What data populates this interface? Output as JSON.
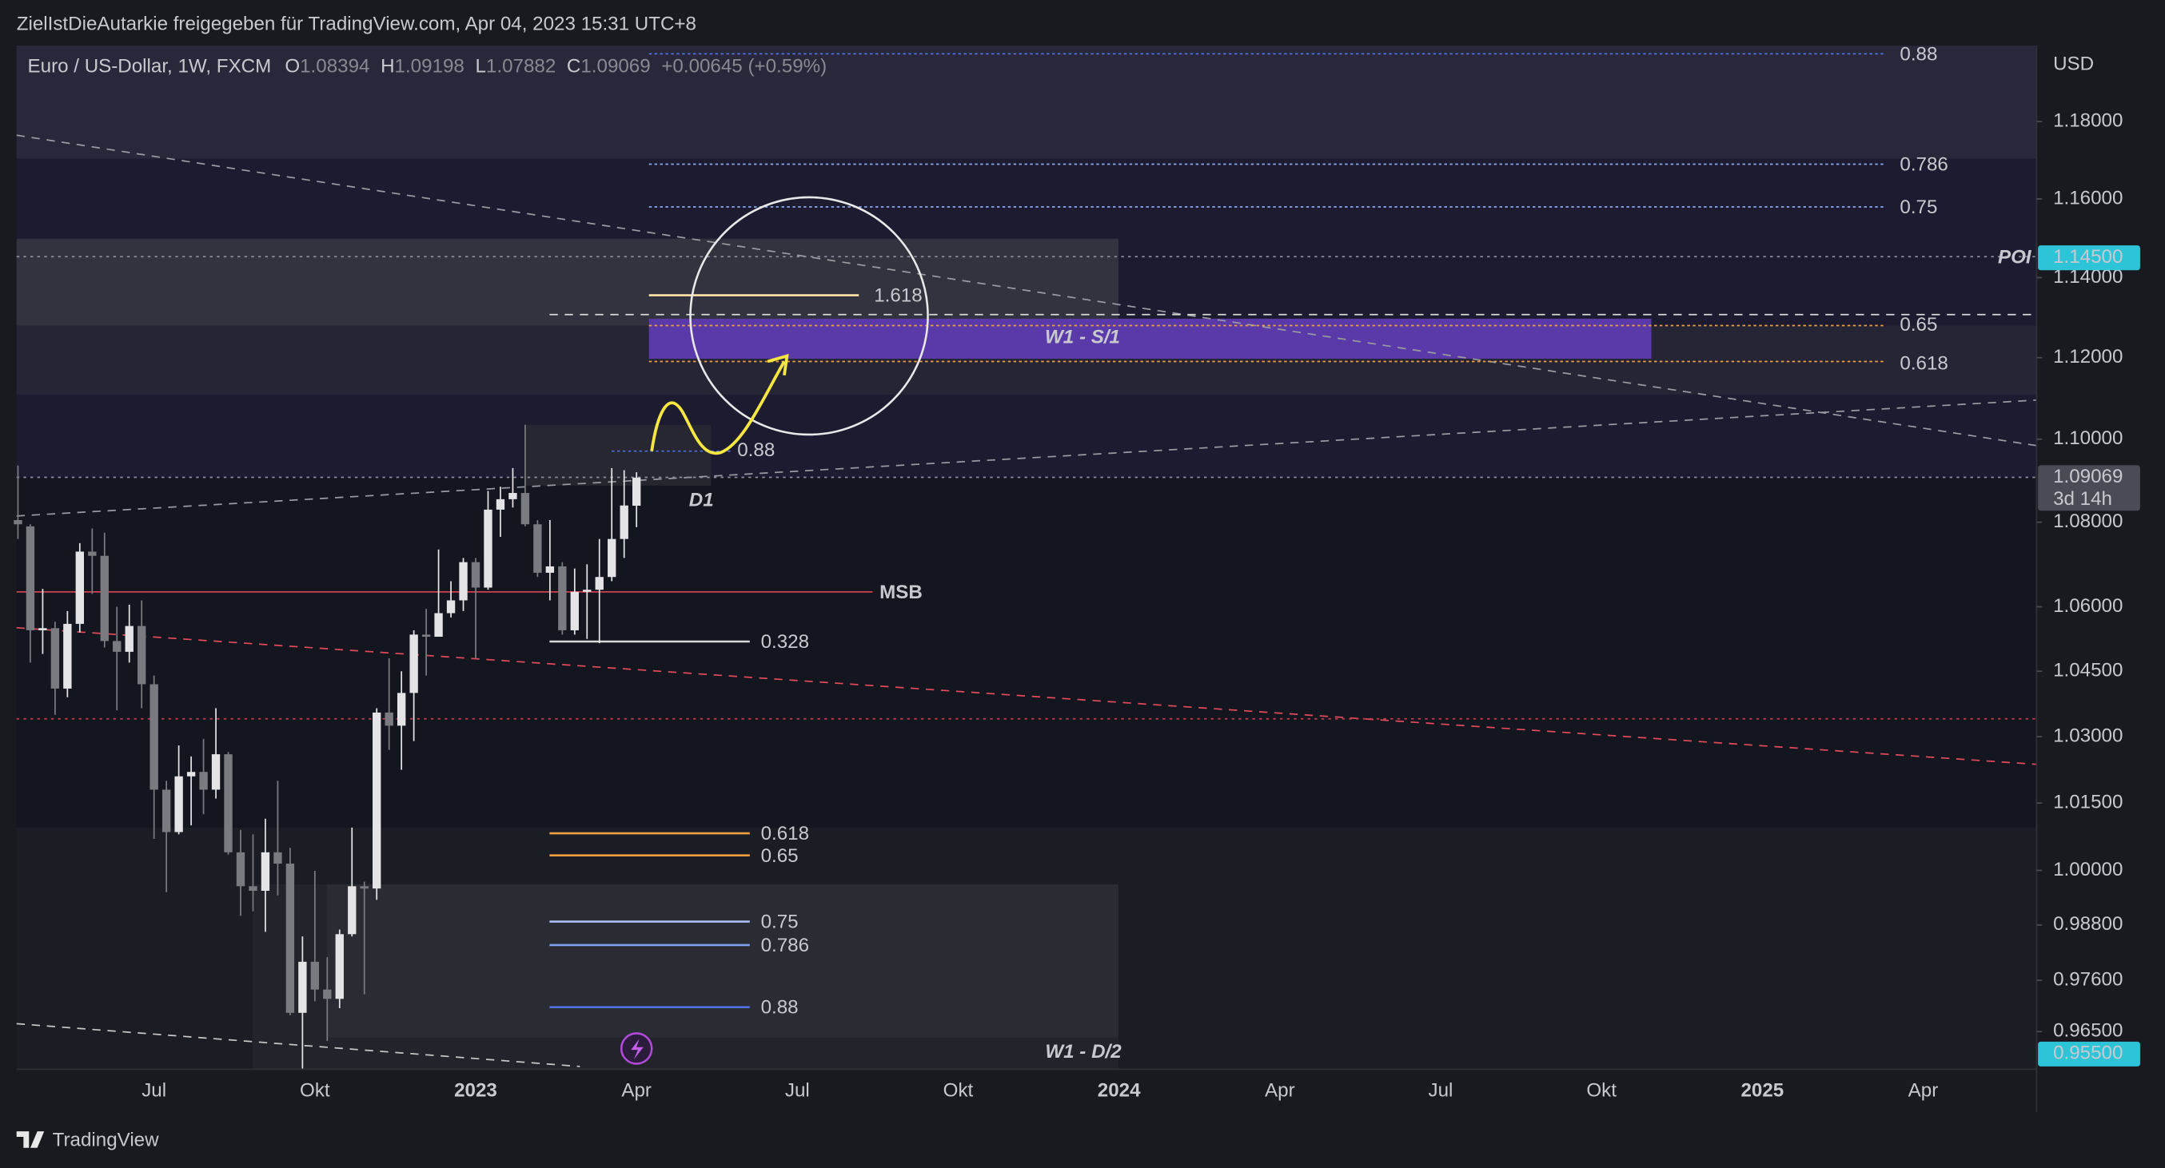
{
  "header": {
    "shared_by": "ZielIstDieAutarkie freigegeben für TradingView.com, Apr 04, 2023 15:31 UTC+8"
  },
  "chart_data": {
    "type": "candlestick",
    "title": "Euro / US-Dollar, 1W, FXCM",
    "ohlc_labels": [
      "O",
      "H",
      "L",
      "C"
    ],
    "change": "+0.00645 (+0.59%)",
    "currency": "USD",
    "up_color": "#e4e4e6",
    "down_color": "#7a7b80",
    "log_scale": true,
    "ylim": [
      0.957,
      1.2
    ],
    "yticks": [
      {
        "value": 1.18,
        "label": "1.18000"
      },
      {
        "value": 1.16,
        "label": "1.16000"
      },
      {
        "value": 1.14,
        "label": "1.14000"
      },
      {
        "value": 1.12,
        "label": "1.12000"
      },
      {
        "value": 1.1,
        "label": "1.10000"
      },
      {
        "value": 1.08,
        "label": "1.08000"
      },
      {
        "value": 1.06,
        "label": "1.06000"
      },
      {
        "value": 1.045,
        "label": "1.04500"
      },
      {
        "value": 1.03,
        "label": "1.03000"
      },
      {
        "value": 1.015,
        "label": "1.01500"
      },
      {
        "value": 1.0,
        "label": "1.00000"
      },
      {
        "value": 0.988,
        "label": "0.98800"
      },
      {
        "value": 0.976,
        "label": "0.97600"
      },
      {
        "value": 0.965,
        "label": "0.96500"
      }
    ],
    "xticks": [
      "Jul",
      "Okt",
      "2023",
      "Apr",
      "Jul",
      "Okt",
      "2024",
      "Apr",
      "Jul",
      "Okt",
      "2025",
      "Apr"
    ],
    "candles": [
      {
        "open": 1.0805,
        "high": 1.0936,
        "low": 1.076,
        "close": 1.0795
      },
      {
        "open": 1.079,
        "high": 1.0795,
        "low": 1.047,
        "close": 1.0545
      },
      {
        "open": 1.0545,
        "high": 1.0642,
        "low": 1.049,
        "close": 1.055
      },
      {
        "open": 1.055,
        "high": 1.0565,
        "low": 1.035,
        "close": 1.041
      },
      {
        "open": 1.041,
        "high": 1.059,
        "low": 1.039,
        "close": 1.056
      },
      {
        "open": 1.056,
        "high": 1.075,
        "low": 1.054,
        "close": 1.073
      },
      {
        "open": 1.073,
        "high": 1.0785,
        "low": 1.063,
        "close": 1.072
      },
      {
        "open": 1.072,
        "high": 1.0775,
        "low": 1.0505,
        "close": 1.052
      },
      {
        "open": 1.052,
        "high": 1.06,
        "low": 1.036,
        "close": 1.0495
      },
      {
        "open": 1.0495,
        "high": 1.0605,
        "low": 1.047,
        "close": 1.0555
      },
      {
        "open": 1.0555,
        "high": 1.0615,
        "low": 1.0365,
        "close": 1.042
      },
      {
        "open": 1.042,
        "high": 1.044,
        "low": 1.007,
        "close": 1.018
      },
      {
        "open": 1.018,
        "high": 1.02,
        "low": 0.9952,
        "close": 1.0085
      },
      {
        "open": 1.0085,
        "high": 1.028,
        "low": 1.008,
        "close": 1.021
      },
      {
        "open": 1.021,
        "high": 1.0255,
        "low": 1.01,
        "close": 1.022
      },
      {
        "open": 1.022,
        "high": 1.0295,
        "low": 1.0125,
        "close": 1.018
      },
      {
        "open": 1.018,
        "high": 1.0365,
        "low": 1.016,
        "close": 1.026
      },
      {
        "open": 1.026,
        "high": 1.0265,
        "low": 1.0035,
        "close": 1.004
      },
      {
        "open": 1.004,
        "high": 1.009,
        "low": 0.99,
        "close": 0.9965
      },
      {
        "open": 0.9965,
        "high": 1.008,
        "low": 0.991,
        "close": 0.9955
      },
      {
        "open": 0.9955,
        "high": 1.0115,
        "low": 0.9865,
        "close": 1.004
      },
      {
        "open": 1.004,
        "high": 1.02,
        "low": 0.9945,
        "close": 1.0015
      },
      {
        "open": 1.0015,
        "high": 1.005,
        "low": 0.9685,
        "close": 0.969
      },
      {
        "open": 0.969,
        "high": 0.9855,
        "low": 0.9535,
        "close": 0.98
      },
      {
        "open": 0.98,
        "high": 0.9999,
        "low": 0.9715,
        "close": 0.974
      },
      {
        "open": 0.974,
        "high": 0.981,
        "low": 0.963,
        "close": 0.972
      },
      {
        "open": 0.972,
        "high": 0.987,
        "low": 0.97,
        "close": 0.986
      },
      {
        "open": 0.986,
        "high": 1.0095,
        "low": 0.9855,
        "close": 0.9965
      },
      {
        "open": 0.9965,
        "high": 0.9975,
        "low": 0.973,
        "close": 0.996
      },
      {
        "open": 0.996,
        "high": 1.0365,
        "low": 0.9935,
        "close": 1.0355
      },
      {
        "open": 1.0355,
        "high": 1.048,
        "low": 1.027,
        "close": 1.0325
      },
      {
        "open": 1.0325,
        "high": 1.045,
        "low": 1.0225,
        "close": 1.04
      },
      {
        "open": 1.04,
        "high": 1.0545,
        "low": 1.029,
        "close": 1.0535
      },
      {
        "open": 1.0535,
        "high": 1.0595,
        "low": 1.044,
        "close": 1.053
      },
      {
        "open": 1.053,
        "high": 1.0735,
        "low": 1.053,
        "close": 1.0585
      },
      {
        "open": 1.0585,
        "high": 1.066,
        "low": 1.0575,
        "close": 1.0615
      },
      {
        "open": 1.0615,
        "high": 1.0715,
        "low": 1.059,
        "close": 1.0705
      },
      {
        "open": 1.0705,
        "high": 1.0715,
        "low": 1.048,
        "close": 1.0645
      },
      {
        "open": 1.0645,
        "high": 1.0875,
        "low": 1.064,
        "close": 1.083
      },
      {
        "open": 1.083,
        "high": 1.0885,
        "low": 1.0765,
        "close": 1.0855
      },
      {
        "open": 1.0855,
        "high": 1.093,
        "low": 1.0835,
        "close": 1.087
      },
      {
        "open": 1.087,
        "high": 1.1035,
        "low": 1.079,
        "close": 1.0795
      },
      {
        "open": 1.0795,
        "high": 1.0805,
        "low": 1.067,
        "close": 1.068
      },
      {
        "open": 1.068,
        "high": 1.0805,
        "low": 1.0615,
        "close": 1.0695
      },
      {
        "open": 1.0695,
        "high": 1.0705,
        "low": 1.0535,
        "close": 1.0545
      },
      {
        "open": 1.0545,
        "high": 1.069,
        "low": 1.0535,
        "close": 1.0635
      },
      {
        "open": 1.0635,
        "high": 1.07,
        "low": 1.0525,
        "close": 1.064
      },
      {
        "open": 1.064,
        "high": 1.076,
        "low": 1.0515,
        "close": 1.067
      },
      {
        "open": 1.067,
        "high": 1.093,
        "low": 1.066,
        "close": 1.076
      },
      {
        "open": 1.076,
        "high": 1.0925,
        "low": 1.0715,
        "close": 1.084
      },
      {
        "open": 1.08394,
        "high": 1.09198,
        "low": 1.07882,
        "close": 1.09069
      }
    ],
    "countdown": "3d 14h",
    "poi_tag": {
      "value": 1.145,
      "label": "1.14500"
    },
    "bottom_tag": {
      "value": 0.955,
      "label": "0.95500"
    },
    "annotations": [
      "0.88",
      "0.786",
      "0.75",
      "POI",
      "1.618",
      "0.65",
      "0.618",
      "W1 - S/1",
      "0.88",
      "D1",
      "MSB",
      "0.328",
      "0.618",
      "0.65",
      "0.75",
      "0.786",
      "0.88",
      "W1 - D/2"
    ]
  },
  "footer": {
    "brand": "TradingView"
  }
}
